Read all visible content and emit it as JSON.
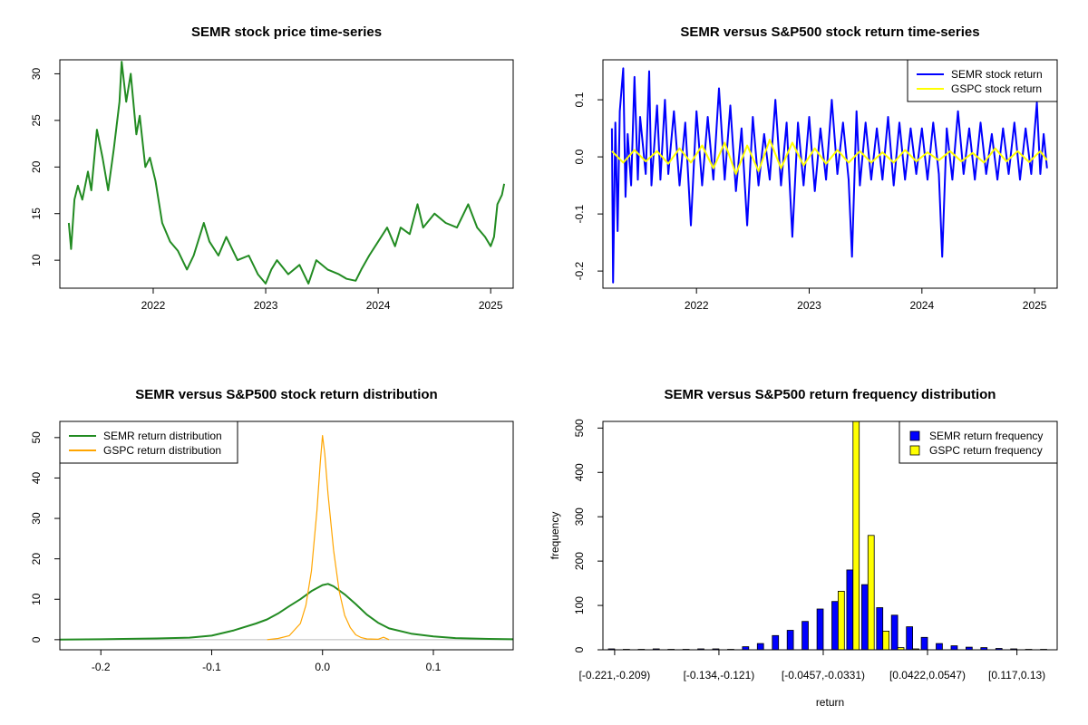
{
  "charts": [
    {
      "id": "price",
      "type": "line",
      "title": "SEMR stock price time-series",
      "xlim": [
        2021.17,
        2025.2
      ],
      "ylim": [
        7.0,
        31.5
      ],
      "x_ticks": [
        2022,
        2023,
        2024,
        2025
      ],
      "x_tick_labels": [
        "2022",
        "2023",
        "2024",
        "2025"
      ],
      "y_ticks": [
        10,
        15,
        20,
        25,
        30
      ],
      "y_tick_labels": [
        "10",
        "15",
        "20",
        "25",
        "30"
      ],
      "series": [
        {
          "name": "SEMR price",
          "color": "#228B22",
          "x": [
            2021.25,
            2021.27,
            2021.3,
            2021.33,
            2021.37,
            2021.42,
            2021.45,
            2021.5,
            2021.55,
            2021.6,
            2021.65,
            2021.7,
            2021.72,
            2021.76,
            2021.8,
            2021.85,
            2021.88,
            2021.93,
            2021.97,
            2022.02,
            2022.08,
            2022.15,
            2022.22,
            2022.3,
            2022.36,
            2022.45,
            2022.5,
            2022.58,
            2022.65,
            2022.75,
            2022.85,
            2022.93,
            2023.0,
            2023.05,
            2023.1,
            2023.2,
            2023.3,
            2023.38,
            2023.45,
            2023.55,
            2023.65,
            2023.72,
            2023.8,
            2023.85,
            2023.92,
            2024.0,
            2024.08,
            2024.15,
            2024.2,
            2024.28,
            2024.35,
            2024.4,
            2024.5,
            2024.6,
            2024.7,
            2024.8,
            2024.88,
            2024.95,
            2025.0,
            2025.03,
            2025.06,
            2025.1,
            2025.12
          ],
          "values": [
            14.0,
            11.2,
            16.5,
            18.0,
            16.5,
            19.5,
            17.5,
            24.0,
            21.0,
            17.5,
            22.0,
            27.0,
            31.3,
            27.0,
            30.0,
            23.5,
            25.5,
            20.0,
            21.0,
            18.5,
            14.0,
            12.0,
            11.0,
            9.0,
            10.5,
            14.0,
            12.0,
            10.5,
            12.5,
            10.0,
            10.5,
            8.5,
            7.5,
            9.0,
            10.0,
            8.5,
            9.5,
            7.5,
            10.0,
            9.0,
            8.5,
            8.0,
            7.8,
            9.0,
            10.5,
            12.0,
            13.5,
            11.5,
            13.5,
            12.8,
            16.0,
            13.5,
            15.0,
            14.0,
            13.5,
            16.0,
            13.5,
            12.5,
            11.5,
            12.5,
            16.0,
            17.0,
            18.2
          ]
        }
      ]
    },
    {
      "id": "returns",
      "type": "line",
      "title": "SEMR versus S&P500 stock return time-series",
      "xlim": [
        2021.17,
        2025.2
      ],
      "ylim": [
        -0.23,
        0.17
      ],
      "x_ticks": [
        2022,
        2023,
        2024,
        2025
      ],
      "x_tick_labels": [
        "2022",
        "2023",
        "2024",
        "2025"
      ],
      "y_ticks": [
        -0.2,
        -0.1,
        0.0,
        0.1
      ],
      "y_tick_labels": [
        "-0.2",
        "-0.1",
        "0.0",
        "0.1"
      ],
      "legend": {
        "position": "top-right",
        "entries": [
          "SEMR stock return",
          "GSPC stock return"
        ]
      },
      "series": [
        {
          "name": "SEMR stock return",
          "color": "#0000FF",
          "x": [
            2021.25,
            2021.26,
            2021.28,
            2021.3,
            2021.32,
            2021.35,
            2021.37,
            2021.39,
            2021.42,
            2021.45,
            2021.48,
            2021.5,
            2021.55,
            2021.58,
            2021.6,
            2021.65,
            2021.68,
            2021.72,
            2021.75,
            2021.8,
            2021.85,
            2021.9,
            2021.95,
            2022.0,
            2022.05,
            2022.1,
            2022.15,
            2022.2,
            2022.25,
            2022.3,
            2022.35,
            2022.4,
            2022.45,
            2022.5,
            2022.55,
            2022.6,
            2022.65,
            2022.7,
            2022.75,
            2022.8,
            2022.85,
            2022.9,
            2022.95,
            2023.0,
            2023.05,
            2023.1,
            2023.15,
            2023.2,
            2023.25,
            2023.3,
            2023.35,
            2023.38,
            2023.42,
            2023.45,
            2023.5,
            2023.55,
            2023.6,
            2023.65,
            2023.7,
            2023.75,
            2023.8,
            2023.85,
            2023.9,
            2023.95,
            2024.0,
            2024.05,
            2024.1,
            2024.15,
            2024.18,
            2024.22,
            2024.27,
            2024.32,
            2024.37,
            2024.42,
            2024.47,
            2024.52,
            2024.57,
            2024.62,
            2024.67,
            2024.72,
            2024.77,
            2024.82,
            2024.87,
            2024.92,
            2024.97,
            2025.02,
            2025.05,
            2025.08,
            2025.11
          ],
          "values": [
            0.05,
            -0.22,
            0.06,
            -0.13,
            0.08,
            0.155,
            -0.07,
            0.04,
            -0.05,
            0.14,
            -0.04,
            0.07,
            -0.03,
            0.15,
            -0.05,
            0.09,
            -0.04,
            0.1,
            -0.03,
            0.08,
            -0.05,
            0.06,
            -0.12,
            0.08,
            -0.05,
            0.07,
            -0.04,
            0.12,
            -0.04,
            0.09,
            -0.06,
            0.05,
            -0.12,
            0.07,
            -0.05,
            0.04,
            -0.04,
            0.1,
            -0.05,
            0.06,
            -0.14,
            0.06,
            -0.05,
            0.07,
            -0.06,
            0.05,
            -0.04,
            0.1,
            -0.03,
            0.06,
            -0.04,
            -0.175,
            0.08,
            -0.05,
            0.06,
            -0.04,
            0.05,
            -0.04,
            0.07,
            -0.05,
            0.06,
            -0.04,
            0.05,
            -0.03,
            0.05,
            -0.04,
            0.06,
            -0.03,
            -0.175,
            0.05,
            -0.04,
            0.08,
            -0.03,
            0.05,
            -0.04,
            0.06,
            -0.03,
            0.04,
            -0.04,
            0.05,
            -0.03,
            0.06,
            -0.04,
            0.05,
            -0.03,
            0.095,
            -0.03,
            0.04,
            -0.02
          ]
        },
        {
          "name": "GSPC stock return",
          "color": "#FFFF00",
          "x": [
            2021.25,
            2021.35,
            2021.45,
            2021.55,
            2021.65,
            2021.75,
            2021.85,
            2021.95,
            2022.05,
            2022.15,
            2022.25,
            2022.35,
            2022.45,
            2022.55,
            2022.65,
            2022.75,
            2022.85,
            2022.95,
            2023.05,
            2023.15,
            2023.25,
            2023.35,
            2023.45,
            2023.55,
            2023.65,
            2023.75,
            2023.85,
            2023.95,
            2024.05,
            2024.15,
            2024.25,
            2024.35,
            2024.45,
            2024.55,
            2024.65,
            2024.75,
            2024.85,
            2024.95,
            2025.05,
            2025.11
          ],
          "values": [
            0.01,
            -0.01,
            0.012,
            -0.008,
            0.01,
            -0.012,
            0.015,
            -0.01,
            0.02,
            -0.02,
            0.025,
            -0.03,
            0.02,
            -0.025,
            0.03,
            -0.02,
            0.025,
            -0.015,
            0.015,
            -0.012,
            0.012,
            -0.01,
            0.01,
            -0.01,
            0.008,
            -0.01,
            0.012,
            -0.008,
            0.008,
            -0.006,
            0.01,
            -0.008,
            0.007,
            -0.01,
            0.015,
            -0.008,
            0.01,
            -0.009,
            0.01,
            -0.006
          ]
        }
      ]
    },
    {
      "id": "density",
      "type": "line",
      "title": "SEMR versus S&P500 stock return distribution",
      "xlim": [
        -0.237,
        0.172
      ],
      "ylim": [
        -2.5,
        54
      ],
      "x_ticks": [
        -0.2,
        -0.1,
        0.0,
        0.1
      ],
      "x_tick_labels": [
        "-0.2",
        "-0.1",
        "0.0",
        "0.1"
      ],
      "y_ticks": [
        0,
        10,
        20,
        30,
        40,
        50
      ],
      "y_tick_labels": [
        "0",
        "10",
        "20",
        "30",
        "40",
        "50"
      ],
      "baseline_color": "#BEBEBE",
      "legend": {
        "position": "top-left",
        "entries": [
          "SEMR return distribution",
          "GSPC return distribution"
        ]
      },
      "series": [
        {
          "name": "SEMR return distribution",
          "color": "#228B22",
          "x": [
            -0.237,
            -0.2,
            -0.15,
            -0.12,
            -0.1,
            -0.08,
            -0.06,
            -0.05,
            -0.04,
            -0.03,
            -0.02,
            -0.01,
            0.0,
            0.005,
            0.01,
            0.02,
            0.03,
            0.04,
            0.05,
            0.06,
            0.08,
            0.1,
            0.12,
            0.15,
            0.172
          ],
          "values": [
            0.0,
            0.1,
            0.3,
            0.5,
            1.0,
            2.3,
            4.0,
            5.0,
            6.5,
            8.3,
            10.0,
            12.0,
            13.5,
            13.8,
            13.2,
            11.2,
            8.8,
            6.2,
            4.2,
            2.8,
            1.5,
            0.8,
            0.4,
            0.2,
            0.1
          ]
        },
        {
          "name": "GSPC return distribution",
          "color": "#FFA500",
          "x": [
            -0.05,
            -0.04,
            -0.03,
            -0.02,
            -0.015,
            -0.01,
            -0.005,
            -0.002,
            0.0,
            0.002,
            0.005,
            0.01,
            0.015,
            0.02,
            0.025,
            0.03,
            0.035,
            0.04,
            0.05,
            0.055,
            0.06
          ],
          "values": [
            0.0,
            0.3,
            1.0,
            4.0,
            8.5,
            17.0,
            32.0,
            44.0,
            50.5,
            46.0,
            36.0,
            22.0,
            12.0,
            6.0,
            3.0,
            1.2,
            0.5,
            0.2,
            0.1,
            0.6,
            0.0
          ]
        }
      ]
    },
    {
      "id": "hist",
      "type": "bar",
      "title": "SEMR versus S&P500 return frequency distribution",
      "xlabel": "return",
      "ylabel": "frequency",
      "ylim": [
        0,
        515
      ],
      "y_ticks": [
        0,
        100,
        200,
        300,
        400,
        500
      ],
      "y_tick_labels": [
        "0",
        "100",
        "200",
        "300",
        "400",
        "500"
      ],
      "category_tick_labels": [
        "[-0.221,-0.209)",
        "[-0.134,-0.121)",
        "[-0.0457,-0.0331)",
        "[0.0422,0.0547)",
        "[0.117,0.13)"
      ],
      "category_tick_index": [
        0,
        7,
        14,
        21,
        27
      ],
      "legend": {
        "position": "top-right",
        "entries": [
          "SEMR return frequency",
          "GSPC return frequency"
        ]
      },
      "series": [
        {
          "name": "SEMR return frequency",
          "color": "#0000FF",
          "values": [
            2,
            1,
            1,
            2,
            1,
            1,
            2,
            2,
            1,
            7,
            14,
            32,
            44,
            64,
            92,
            109,
            180,
            147,
            95,
            78,
            52,
            28,
            14,
            9,
            6,
            5,
            3,
            2,
            1,
            1
          ]
        },
        {
          "name": "GSPC return frequency",
          "color": "#FFFF00",
          "values": [
            0,
            0,
            0,
            0,
            0,
            0,
            0,
            0,
            0,
            0,
            0,
            0,
            0,
            0,
            0,
            132,
            515,
            258,
            42,
            5,
            2,
            0,
            0,
            0,
            0,
            0,
            0,
            0,
            0,
            0
          ]
        }
      ]
    }
  ]
}
